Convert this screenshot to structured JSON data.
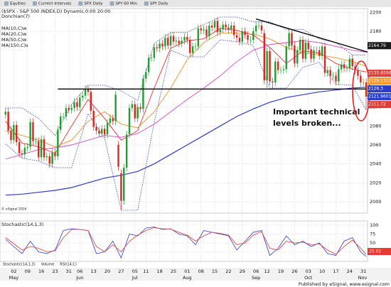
{
  "toolbar": [
    "Equities",
    "Current Intervals",
    "SPX Daily",
    "SPY 60 Min",
    "SPY Daily"
  ],
  "tabs": [
    "Stochastic(14,1,3)",
    "Volume",
    "RSI(14,C)"
  ],
  "footer": "Published by eSignal, www.esignal.com",
  "chart_data": [
    {
      "type": "candlestick",
      "title": "($SPX - S&P 500 INDEX,D) Dynamic,0:00 20:00",
      "copyright": "© eSignal 2016",
      "up_color": "#1f9e2f",
      "down_color": "#d8261f",
      "open": [
        2092,
        2095,
        2075,
        2065,
        2081,
        2063,
        2051,
        2050,
        2057,
        2058,
        2084,
        2064,
        2064,
        2047,
        2066,
        2047,
        2048,
        2040,
        2052,
        2048,
        2076,
        2090,
        2090,
        2099,
        2097,
        2099,
        2105,
        2100,
        2110,
        2112,
        2119,
        2116,
        2096,
        2079,
        2075,
        2072,
        2077,
        2071,
        2083,
        2088,
        2085,
        2060,
        2030,
        2001,
        2036,
        2071,
        2099,
        2103,
        2088,
        2100,
        2098,
        2130,
        2137,
        2152,
        2152,
        2163,
        2162,
        2167,
        2164,
        2173,
        2165,
        2175,
        2169,
        2170,
        2167,
        2170,
        2174,
        2171,
        2157,
        2164,
        2164,
        2183,
        2181,
        2182,
        2175,
        2186,
        2184,
        2191,
        2179,
        2182,
        2187,
        2184,
        2182,
        2186,
        2176,
        2173,
        2169,
        2180,
        2176,
        2171,
        2171,
        2180,
        2186,
        2186,
        2178,
        2128,
        2159,
        2127,
        2126,
        2148,
        2139,
        2139,
        2140,
        2164,
        2178,
        2165,
        2146,
        2160,
        2171,
        2151,
        2168,
        2161,
        2151,
        2160,
        2160,
        2154,
        2164,
        2136,
        2139,
        2133,
        2133,
        2127,
        2140,
        2145,
        2141,
        2141,
        2151,
        2143,
        2139,
        2133,
        2126,
        2126
      ],
      "high": [
        2099,
        2099,
        2079,
        2085,
        2085,
        2067,
        2055,
        2061,
        2062,
        2088,
        2088,
        2068,
        2068,
        2070,
        2070,
        2052,
        2052,
        2056,
        2056,
        2080,
        2094,
        2094,
        2103,
        2103,
        2103,
        2109,
        2109,
        2114,
        2116,
        2123,
        2123,
        2120,
        2100,
        2083,
        2079,
        2081,
        2081,
        2087,
        2092,
        2092,
        2117,
        2064,
        2034,
        2040,
        2075,
        2103,
        2107,
        2107,
        2104,
        2104,
        2134,
        2141,
        2156,
        2156,
        2167,
        2167,
        2171,
        2171,
        2177,
        2177,
        2179,
        2179,
        2174,
        2174,
        2174,
        2178,
        2178,
        2175,
        2168,
        2168,
        2187,
        2187,
        2186,
        2186,
        2190,
        2190,
        2194,
        2195,
        2186,
        2191,
        2191,
        2188,
        2190,
        2190,
        2180,
        2177,
        2184,
        2184,
        2180,
        2175,
        2184,
        2190,
        2190,
        2190,
        2182,
        2163,
        2163,
        2131,
        2152,
        2152,
        2143,
        2144,
        2168,
        2182,
        2182,
        2169,
        2164,
        2175,
        2175,
        2172,
        2172,
        2165,
        2164,
        2164,
        2164,
        2168,
        2168,
        2143,
        2143,
        2137,
        2137,
        2144,
        2149,
        2149,
        2145,
        2155,
        2155,
        2147,
        2143,
        2137,
        2130,
        2130
      ],
      "low": [
        2088,
        2071,
        2061,
        2061,
        2059,
        2047,
        2046,
        2046,
        2053,
        2054,
        2060,
        2060,
        2043,
        2043,
        2043,
        2043,
        2036,
        2036,
        2044,
        2044,
        2072,
        2086,
        2086,
        2093,
        2093,
        2095,
        2096,
        2096,
        2106,
        2108,
        2112,
        2092,
        2075,
        2071,
        2068,
        2068,
        2067,
        2067,
        2079,
        2081,
        2081,
        2033,
        1991,
        1997,
        2032,
        2067,
        2095,
        2084,
        2084,
        2094,
        2094,
        2126,
        2133,
        2148,
        2148,
        2158,
        2158,
        2160,
        2160,
        2161,
        2161,
        2165,
        2165,
        2163,
        2163,
        2166,
        2167,
        2153,
        2153,
        2160,
        2160,
        2177,
        2177,
        2171,
        2171,
        2180,
        2180,
        2175,
        2175,
        2178,
        2180,
        2178,
        2178,
        2172,
        2169,
        2165,
        2165,
        2172,
        2167,
        2167,
        2167,
        2176,
        2182,
        2177,
        2124,
        2120,
        2123,
        2120,
        2122,
        2135,
        2135,
        2135,
        2136,
        2160,
        2161,
        2142,
        2142,
        2156,
        2147,
        2147,
        2157,
        2147,
        2147,
        2156,
        2150,
        2150,
        2132,
        2132,
        2124,
        2129,
        2123,
        2123,
        2136,
        2137,
        2137,
        2137,
        2139,
        2135,
        2129,
        2122,
        2122,
        2097
      ],
      "close": [
        2095,
        2075,
        2065,
        2081,
        2063,
        2051,
        2050,
        2057,
        2058,
        2084,
        2064,
        2064,
        2047,
        2066,
        2047,
        2048,
        2040,
        2052,
        2048,
        2076,
        2090,
        2090,
        2099,
        2097,
        2099,
        2105,
        2100,
        2110,
        2112,
        2119,
        2116,
        2096,
        2079,
        2075,
        2072,
        2077,
        2071,
        2083,
        2088,
        2085,
        2113,
        2037,
        2001,
        2036,
        2071,
        2099,
        2103,
        2088,
        2100,
        2098,
        2130,
        2137,
        2152,
        2152,
        2163,
        2162,
        2167,
        2164,
        2173,
        2165,
        2175,
        2169,
        2170,
        2167,
        2170,
        2174,
        2171,
        2157,
        2164,
        2164,
        2183,
        2181,
        2182,
        2175,
        2186,
        2184,
        2191,
        2179,
        2182,
        2187,
        2184,
        2182,
        2186,
        2176,
        2173,
        2169,
        2180,
        2176,
        2171,
        2171,
        2180,
        2186,
        2186,
        2181,
        2128,
        2159,
        2127,
        2126,
        2148,
        2139,
        2139,
        2140,
        2164,
        2178,
        2165,
        2146,
        2160,
        2171,
        2151,
        2168,
        2161,
        2151,
        2160,
        2160,
        2154,
        2164,
        2136,
        2139,
        2133,
        2133,
        2127,
        2140,
        2145,
        2141,
        2141,
        2151,
        2143,
        2139,
        2133,
        2126,
        2126,
        2111
      ],
      "overlay_x": [
        0,
        6,
        12,
        18,
        24,
        30,
        36,
        42,
        48,
        54,
        60,
        66,
        72,
        78,
        84,
        90,
        96,
        102,
        108,
        114,
        120,
        126,
        131
      ],
      "donchian": {
        "name": "Donchian(7)",
        "color": "#2a3cc8",
        "upper": [
          2099,
          2099,
          2088,
          2070,
          2103,
          2123,
          2123,
          2117,
          2107,
          2167,
          2179,
          2179,
          2187,
          2195,
          2195,
          2190,
          2190,
          2182,
          2182,
          2172,
          2168,
          2155,
          2155
        ],
        "lower": [
          2061,
          2046,
          2043,
          2036,
          2036,
          2093,
          2067,
          1991,
          1991,
          2084,
          2160,
          2153,
          2153,
          2171,
          2169,
          2165,
          2120,
          2120,
          2142,
          2147,
          2124,
          2123,
          2097
        ]
      },
      "series": [
        {
          "name": "MA(10,C)w",
          "color": "#e0302a",
          "values": [
            2085,
            2062,
            2058,
            2051,
            2080,
            2108,
            2088,
            2065,
            2075,
            2120,
            2162,
            2170,
            2172,
            2183,
            2181,
            2176,
            2163,
            2146,
            2159,
            2157,
            2146,
            2140,
            2137
          ]
        },
        {
          "name": "MA(20,C)w",
          "color": "#e8902a",
          "values": [
            2075,
            2070,
            2065,
            2058,
            2065,
            2085,
            2095,
            2082,
            2078,
            2095,
            2120,
            2150,
            2168,
            2178,
            2178,
            2177,
            2172,
            2163,
            2157,
            2155,
            2152,
            2148,
            2143
          ]
        },
        {
          "name": "MA(50,C)w",
          "color": "#d448c4",
          "values": [
            2045,
            2050,
            2055,
            2057,
            2060,
            2065,
            2070,
            2068,
            2072,
            2082,
            2095,
            2108,
            2120,
            2133,
            2148,
            2160,
            2166,
            2168,
            2170,
            2168,
            2164,
            2160,
            2158
          ]
        },
        {
          "name": "MA(150,C)s",
          "color": "#2a3cc8",
          "values": [
            2007,
            2008,
            2010,
            2012,
            2015,
            2020,
            2025,
            2028,
            2032,
            2040,
            2050,
            2060,
            2070,
            2080,
            2090,
            2098,
            2105,
            2110,
            2113,
            2116,
            2118,
            2120,
            2121
          ]
        }
      ],
      "lines": [
        {
          "x": [
            19,
            131
          ],
          "y": [
            2119,
            2119
          ],
          "color": "#000000"
        },
        {
          "x": [
            91,
            131.5
          ],
          "y": [
            2193,
            2158
          ],
          "color": "#000000"
        }
      ],
      "annotation": [
        "Important technical",
        "levels broken..."
      ],
      "readouts": [
        {
          "value": 2164.79,
          "color": "#1a1a1a"
        },
        {
          "value": 2135.65969,
          "color": "#e53935"
        },
        {
          "value": 2129.13228,
          "color": "#f09a30"
        },
        {
          "value": 2126.3,
          "color": "#2a3cc8"
        },
        {
          "value": 2121.96013,
          "color": "#2a3cc8"
        },
        {
          "value": 2111.72,
          "color": "#e53935"
        }
      ],
      "xlim": [
        -2,
        131.5
      ],
      "ylim": [
        1988,
        2204
      ],
      "yticks": [
        2000,
        2020,
        2040,
        2060,
        2080,
        2100,
        2180,
        2200
      ],
      "xticks": [
        {
          "value": 3,
          "label": "02"
        },
        {
          "value": 8,
          "label": "09"
        },
        {
          "value": 13,
          "label": "16"
        },
        {
          "value": 18,
          "label": "23"
        },
        {
          "value": 23,
          "label": "31"
        },
        {
          "value": 27,
          "label": "06"
        },
        {
          "value": 32,
          "label": "13"
        },
        {
          "value": 37,
          "label": "20"
        },
        {
          "value": 42,
          "label": "27"
        },
        {
          "value": 47,
          "label": "05"
        },
        {
          "value": 51,
          "label": "11"
        },
        {
          "value": 56,
          "label": "18"
        },
        {
          "value": 61,
          "label": "25"
        },
        {
          "value": 66,
          "label": "01"
        },
        {
          "value": 71,
          "label": "08"
        },
        {
          "value": 76,
          "label": "15"
        },
        {
          "value": 81,
          "label": "22"
        },
        {
          "value": 86,
          "label": "29"
        },
        {
          "value": 91,
          "label": "06"
        },
        {
          "value": 95,
          "label": "12"
        },
        {
          "value": 100,
          "label": "19"
        },
        {
          "value": 105,
          "label": "26"
        },
        {
          "value": 110,
          "label": "03"
        },
        {
          "value": 115,
          "label": "10"
        },
        {
          "value": 120,
          "label": "17"
        },
        {
          "value": 125,
          "label": "24"
        },
        {
          "value": 130,
          "label": "31"
        }
      ],
      "months": [
        {
          "value": 3,
          "label": "May"
        },
        {
          "value": 27,
          "label": "Jun"
        },
        {
          "value": 47,
          "label": "Jul"
        },
        {
          "value": 66,
          "label": "Aug"
        },
        {
          "value": 91,
          "label": "Sep"
        },
        {
          "value": 110,
          "label": "Oct"
        },
        {
          "value": 131,
          "label": "Nov"
        }
      ],
      "grid": true
    },
    {
      "type": "line",
      "title": "Stochastic(14,1,3)",
      "x": [
        0,
        3,
        6,
        9,
        12,
        15,
        18,
        21,
        24,
        27,
        30,
        33,
        36,
        39,
        42,
        45,
        48,
        51,
        54,
        57,
        60,
        63,
        66,
        69,
        72,
        75,
        78,
        81,
        84,
        87,
        90,
        93,
        96,
        99,
        102,
        105,
        108,
        111,
        114,
        117,
        120,
        123,
        126,
        129,
        131
      ],
      "series": [
        {
          "color": "#2a3cc8",
          "values": [
            60,
            40,
            20,
            55,
            25,
            20,
            30,
            85,
            90,
            88,
            85,
            20,
            25,
            55,
            8,
            75,
            70,
            92,
            95,
            88,
            90,
            75,
            70,
            45,
            85,
            80,
            75,
            70,
            30,
            55,
            80,
            85,
            15,
            35,
            70,
            45,
            55,
            40,
            50,
            20,
            15,
            55,
            65,
            25,
            12
          ]
        },
        {
          "color": "#e53935",
          "values": [
            65,
            48,
            30,
            40,
            35,
            25,
            28,
            65,
            88,
            88,
            85,
            40,
            25,
            45,
            25,
            55,
            72,
            85,
            93,
            90,
            89,
            80,
            72,
            55,
            70,
            80,
            77,
            72,
            45,
            50,
            72,
            82,
            35,
            30,
            55,
            50,
            52,
            45,
            47,
            30,
            18,
            40,
            58,
            35,
            18
          ]
        }
      ],
      "readout": {
        "value": 25.92,
        "color": "#e53935"
      },
      "xlim": [
        -2,
        131.5
      ],
      "ylim": [
        0,
        108
      ],
      "yticks": [
        25,
        50,
        75,
        100
      ],
      "grid": true
    }
  ]
}
